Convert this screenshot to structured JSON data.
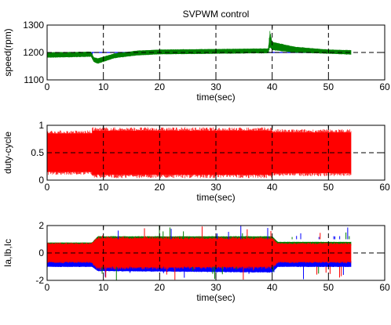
{
  "chart_data": [
    {
      "type": "line",
      "title": "SVPWM control",
      "xlabel": "time(sec)",
      "ylabel": "speed(rpm)",
      "xlim": [
        0,
        60
      ],
      "ylim": [
        1100,
        1300
      ],
      "xticks": [
        0,
        10,
        20,
        30,
        40,
        50,
        60
      ],
      "yticks": [
        1100,
        1200,
        1300
      ],
      "grid": "dashed",
      "series": [
        {
          "color": "#0000ff",
          "style": "line",
          "x": [
            0,
            8,
            8,
            54
          ],
          "y": [
            1190,
            1190,
            1200,
            1200
          ]
        },
        {
          "color": "#008000",
          "style": "band",
          "x": [
            0,
            7.8,
            8.3,
            9,
            12,
            16,
            20,
            30,
            39.3,
            39.6,
            40,
            44,
            50,
            54
          ],
          "y_low": [
            1182,
            1185,
            1166,
            1160,
            1180,
            1190,
            1194,
            1196,
            1198,
            1220,
            1210,
            1200,
            1196,
            1193
          ],
          "y_high": [
            1200,
            1202,
            1182,
            1178,
            1196,
            1206,
            1210,
            1212,
            1214,
            1275,
            1238,
            1220,
            1210,
            1208
          ]
        }
      ]
    },
    {
      "type": "line",
      "xlabel": "time(sec)",
      "ylabel": "duty-cycle",
      "xlim": [
        0,
        60
      ],
      "ylim": [
        0,
        1
      ],
      "xticks": [
        0,
        10,
        20,
        30,
        40,
        50,
        60
      ],
      "yticks": [
        0,
        0.5,
        1
      ],
      "grid": "dashed",
      "series": [
        {
          "color": "#ff0000",
          "style": "band",
          "x": [
            0,
            8,
            8,
            40,
            40,
            54
          ],
          "y_low": [
            0.15,
            0.15,
            0.1,
            0.1,
            0.13,
            0.13
          ],
          "y_high": [
            0.85,
            0.85,
            0.9,
            0.9,
            0.87,
            0.87
          ]
        }
      ]
    },
    {
      "type": "line",
      "xlabel": "time(sec)",
      "ylabel": "Ia,Ib,Ic",
      "xlim": [
        0,
        60
      ],
      "ylim": [
        -2,
        2
      ],
      "xticks": [
        0,
        10,
        20,
        30,
        40,
        50,
        60
      ],
      "yticks": [
        -2,
        0,
        2
      ],
      "grid": "dashed",
      "series": [
        {
          "color": "#0000ff",
          "style": "band",
          "x": [
            0,
            8,
            9,
            40,
            41,
            54
          ],
          "y_low": [
            -1.0,
            -1.0,
            -1.3,
            -1.4,
            -1.0,
            -1.0
          ],
          "y_high": [
            -0.6,
            -0.6,
            -0.8,
            -0.8,
            -0.6,
            -0.6
          ]
        },
        {
          "color": "#008000",
          "style": "band",
          "x": [
            0,
            8,
            9,
            40,
            41,
            54
          ],
          "y_low": [
            0.5,
            0.5,
            0.8,
            0.8,
            0.55,
            0.55
          ],
          "y_high": [
            0.75,
            0.75,
            1.2,
            1.2,
            0.8,
            0.8
          ]
        },
        {
          "color": "#ff0000",
          "style": "band",
          "x": [
            0,
            7.8,
            9,
            40,
            41,
            54
          ],
          "y_low": [
            -0.65,
            -0.65,
            -1.05,
            -1.0,
            -0.65,
            -0.65
          ],
          "y_high": [
            0.65,
            0.65,
            1.05,
            1.0,
            0.65,
            0.65
          ]
        }
      ]
    }
  ]
}
